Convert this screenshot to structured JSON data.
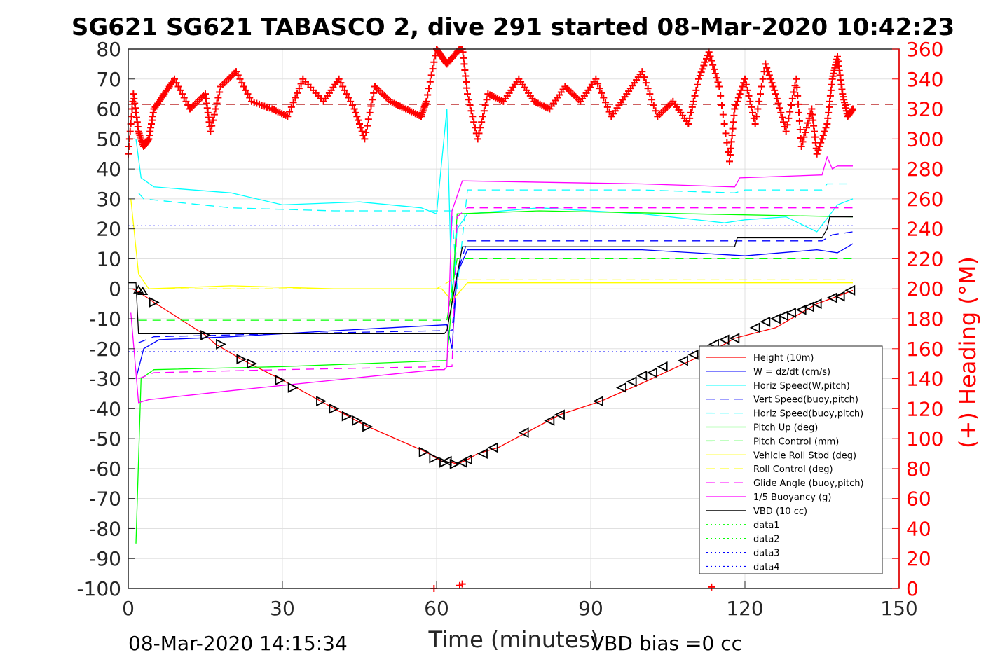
{
  "chart_data": {
    "type": "line",
    "title": "SG621 SG621 TABASCO 2, dive 291 started 08-Mar-2020 10:42:23",
    "xlabel": "Time (minutes)",
    "ylabel_right": "(+) Heading (°M)",
    "footer_left": "08-Mar-2020 14:15:34",
    "footer_right": "VBD bias =0 cc",
    "xlim": [
      0,
      150
    ],
    "ylim": [
      -100,
      80
    ],
    "ylim_right": [
      0,
      360
    ],
    "xticks": [
      0,
      30,
      60,
      90,
      120,
      150
    ],
    "yticks": [
      -100,
      -90,
      -80,
      -70,
      -60,
      -50,
      -40,
      -30,
      -20,
      -10,
      0,
      10,
      20,
      30,
      40,
      50,
      60,
      70,
      80
    ],
    "yticks_right": [
      0,
      20,
      40,
      60,
      80,
      100,
      120,
      140,
      160,
      180,
      200,
      220,
      240,
      260,
      280,
      300,
      320,
      340,
      360
    ],
    "grid": true,
    "legend_position": "lower-right",
    "colors": {
      "heading": "#ff0000",
      "right_axis": "#ff0000"
    },
    "series": [
      {
        "name": "Height (10m)",
        "color": "#ff0000",
        "style": "solid",
        "x": [
          0.8,
          2,
          5,
          15,
          17,
          22,
          30,
          38,
          46,
          58,
          61,
          63,
          64,
          66,
          68,
          72,
          78,
          84,
          92,
          100,
          110,
          116,
          118,
          126,
          130,
          134,
          138,
          141
        ],
        "y": [
          0,
          -1,
          -4.5,
          -15.5,
          -18.5,
          -23.5,
          -30.5,
          -38,
          -45.5,
          -54.5,
          -57.5,
          -58,
          -58.5,
          -57,
          -55,
          -53,
          -47.5,
          -42,
          -37.5,
          -31.5,
          -23.5,
          -18.5,
          -16.5,
          -13,
          -9,
          -5,
          -2.5,
          -0.5
        ]
      },
      {
        "name": "W = dz/dt (cm/s)",
        "color": "#0000ff",
        "style": "solid",
        "x": [
          1.5,
          3,
          6,
          20,
          40,
          62,
          63,
          64,
          66,
          80,
          100,
          120,
          134,
          138,
          141
        ],
        "y": [
          -30,
          -20,
          -17,
          -16,
          -14,
          -12,
          -20,
          5,
          13,
          13,
          13,
          11,
          13,
          12,
          15
        ]
      },
      {
        "name": "Horiz Speed(W,pitch)",
        "color": "#00ffff",
        "style": "solid",
        "x": [
          1.5,
          2.5,
          5,
          20,
          30,
          45,
          57,
          60,
          62,
          63,
          64,
          66,
          80,
          100,
          116,
          120,
          128,
          134,
          138,
          141
        ],
        "y": [
          50,
          37,
          34,
          32,
          28,
          29,
          27,
          25,
          60,
          -5,
          20,
          25,
          27,
          25,
          22,
          23,
          24,
          19,
          28,
          30
        ]
      },
      {
        "name": "Vert Speed(buoy,pitch)",
        "color": "#0000ff",
        "style": "dashed",
        "x": [
          2,
          5,
          30,
          61,
          63,
          64,
          66,
          100,
          118,
          135,
          137,
          141
        ],
        "y": [
          -18,
          -16,
          -15,
          -14,
          -14,
          5,
          16,
          16,
          16,
          16,
          18,
          19
        ]
      },
      {
        "name": "Horiz Speed(buoy,pitch)",
        "color": "#00ffff",
        "style": "dashed",
        "x": [
          2,
          3,
          20,
          40,
          61,
          63,
          64,
          66,
          100,
          118,
          120,
          135,
          136,
          141
        ],
        "y": [
          32,
          30,
          27,
          26,
          26,
          26,
          0,
          33,
          33,
          32,
          33,
          33,
          35,
          35
        ]
      },
      {
        "name": "Pitch Up (deg)",
        "color": "#00ff00",
        "style": "solid",
        "x": [
          1.5,
          2.5,
          5,
          30,
          61,
          62,
          63,
          64,
          80,
          110,
          141
        ],
        "y": [
          -85,
          -30,
          -27,
          -26,
          -24,
          -24,
          -4,
          25,
          26,
          25,
          24
        ]
      },
      {
        "name": "Pitch Control (mm)",
        "color": "#00ff00",
        "style": "dashed",
        "x": [
          2,
          61,
          62,
          64,
          65,
          141
        ],
        "y": [
          -10.5,
          -10.5,
          -10.5,
          10,
          10,
          10
        ]
      },
      {
        "name": "Vehicle Roll Stbd (deg)",
        "color": "#ffff00",
        "style": "solid",
        "x": [
          0.5,
          2,
          4,
          20,
          40,
          58,
          61,
          63,
          66,
          80,
          100,
          120,
          141
        ],
        "y": [
          30,
          5,
          0,
          1,
          0,
          0,
          0,
          -4,
          2,
          2,
          2,
          2,
          2
        ]
      },
      {
        "name": "Roll Control (deg)",
        "color": "#ffff00",
        "style": "dashed",
        "x": [
          2,
          60,
          63,
          141
        ],
        "y": [
          0,
          0,
          3,
          3
        ]
      },
      {
        "name": "Glide Angle (buoy,pitch)",
        "color": "#ff00ff",
        "style": "dashed",
        "x": [
          2,
          5,
          30,
          61,
          63,
          64,
          66,
          100,
          141
        ],
        "y": [
          -30,
          -28,
          -27,
          -26,
          -26,
          24,
          27,
          27,
          27
        ]
      },
      {
        "name": "1/5 Buoyancy (g)",
        "color": "#ff00ff",
        "style": "solid",
        "x": [
          0.5,
          2,
          4,
          20,
          60,
          61.5,
          62,
          63,
          65,
          100,
          118,
          119,
          135,
          136,
          137,
          138,
          141
        ],
        "y": [
          -8,
          -38,
          -37,
          -34,
          -27,
          -27,
          -26,
          26,
          36,
          35,
          34,
          37,
          38,
          44,
          40,
          41,
          41
        ]
      },
      {
        "name": "VBD (10 cc)",
        "color": "#000000",
        "style": "solid",
        "x": [
          0,
          1.5,
          2,
          61.5,
          62,
          65,
          118,
          118.5,
          134,
          135,
          136,
          136.5,
          141
        ],
        "y": [
          2,
          2,
          -15,
          -15,
          -14,
          14,
          14,
          17,
          17,
          17,
          20,
          24,
          24
        ]
      },
      {
        "name": "data1",
        "color": "#00ff00",
        "style": "dotted",
        "x": [],
        "y": []
      },
      {
        "name": "data2",
        "color": "#00ff00",
        "style": "dotted",
        "x": [],
        "y": []
      },
      {
        "name": "data3",
        "color": "#0000ff",
        "style": "dotted",
        "x": [
          0,
          141
        ],
        "y": [
          21,
          21
        ]
      },
      {
        "name": "data4",
        "color": "#0000ff",
        "style": "dotted",
        "x": [
          0,
          141
        ],
        "y": [
          -21,
          -21
        ]
      }
    ],
    "heading": {
      "axis": "right",
      "color": "#ff0000",
      "marker": "+",
      "mean_deg": 323,
      "x": [
        0,
        1,
        2,
        3,
        4,
        5,
        7,
        9,
        12,
        15,
        16,
        18,
        21,
        24,
        28,
        31,
        34,
        38,
        41,
        44,
        46,
        48,
        51,
        54,
        57,
        58,
        60,
        61,
        62,
        64,
        65,
        66,
        68,
        70,
        73,
        76,
        79,
        82,
        85,
        88,
        91,
        94,
        97,
        100,
        103,
        106,
        109,
        111,
        113,
        115,
        117,
        118,
        120,
        122,
        124,
        126,
        128,
        130,
        131,
        133,
        134,
        136,
        137,
        138,
        139,
        140,
        141
      ],
      "y": [
        290,
        330,
        305,
        295,
        300,
        320,
        330,
        340,
        320,
        330,
        305,
        335,
        345,
        325,
        320,
        315,
        340,
        325,
        340,
        320,
        300,
        335,
        325,
        320,
        315,
        325,
        360,
        355,
        350,
        358,
        362,
        330,
        300,
        330,
        325,
        340,
        325,
        320,
        335,
        325,
        340,
        315,
        330,
        345,
        315,
        325,
        310,
        340,
        358,
        335,
        285,
        320,
        340,
        310,
        350,
        330,
        305,
        340,
        295,
        320,
        290,
        310,
        340,
        355,
        330,
        315,
        320
      ]
    },
    "heading_outliers": {
      "x": [
        59.5,
        64.5,
        65,
        113.5
      ],
      "y": [
        0,
        2,
        3,
        1
      ]
    },
    "triangles": {
      "down_x": [
        2,
        2.8
      ],
      "down_y": [
        -0.5,
        -1
      ],
      "right_x": [
        5,
        15,
        18,
        22,
        24,
        29.5,
        32,
        37.5,
        40,
        42.5,
        44.5,
        46.5,
        57.5,
        59.5,
        61.5,
        63.5
      ],
      "right_y": [
        -4.5,
        -15.5,
        -18.5,
        -23.5,
        -25,
        -30.5,
        -33,
        -37.5,
        -40,
        -42.5,
        -44,
        -46,
        -54.5,
        -56.5,
        -58,
        -58.5
      ],
      "left_x": [
        62,
        65,
        66,
        69,
        71,
        77,
        82,
        84,
        91.5,
        96,
        98,
        100,
        102,
        104,
        108,
        110,
        112,
        114,
        116,
        118,
        122,
        124,
        126,
        127.5,
        129,
        131,
        132.5,
        134,
        137,
        138.5,
        140.5
      ],
      "left_y": [
        -57.5,
        -58,
        -57,
        -55,
        -53,
        -48,
        -44,
        -42,
        -37.5,
        -33,
        -31,
        -29,
        -28,
        -26,
        -24,
        -22,
        -20.5,
        -18.5,
        -17,
        -16.5,
        -13,
        -11,
        -10,
        -9,
        -8,
        -7,
        -6,
        -5,
        -3,
        -2.5,
        -0.5
      ]
    }
  }
}
